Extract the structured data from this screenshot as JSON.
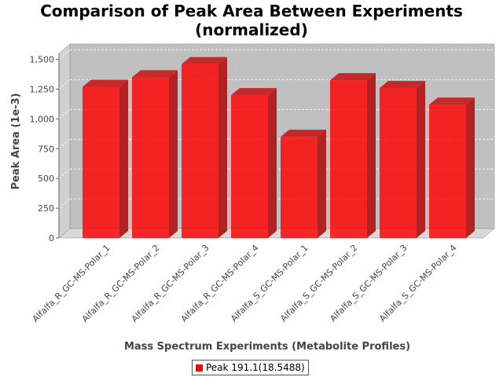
{
  "chart_data": {
    "type": "bar",
    "title": "Comparison of Peak Area Between Experiments\n(normalized)",
    "xlabel": "Mass Spectrum Experiments (Metabolite Profiles)",
    "ylabel": "Peak Area (1e-3)",
    "ylim": [
      0,
      1550
    ],
    "yticks": [
      0,
      250,
      500,
      750,
      1000,
      1250,
      1500
    ],
    "ytick_labels": [
      "0",
      "250",
      "500",
      "750",
      "1,000",
      "1,250",
      "1,500"
    ],
    "categories": [
      "Alfalfa_R_GC-MS-Polar_1",
      "Alfalfa_R_GC-MS-Polar_2",
      "Alfalfa_R_GC-MS-Polar_3",
      "Alfalfa_R_GC-MS-Polar_4",
      "Alfalfa_S_GC-MS-Polar_1",
      "Alfalfa_S_GC-MS-Polar_2",
      "Alfalfa_S_GC-MS-Polar_3",
      "Alfalfa_S_GC-MS-Polar_4"
    ],
    "series": [
      {
        "name": "Peak 191.1(18.5488)",
        "values": [
          1270,
          1350,
          1460,
          1200,
          850,
          1325,
          1260,
          1120
        ],
        "color": "#ff0000"
      }
    ],
    "grid": true,
    "legend": "bottom-center",
    "three_d": true
  }
}
